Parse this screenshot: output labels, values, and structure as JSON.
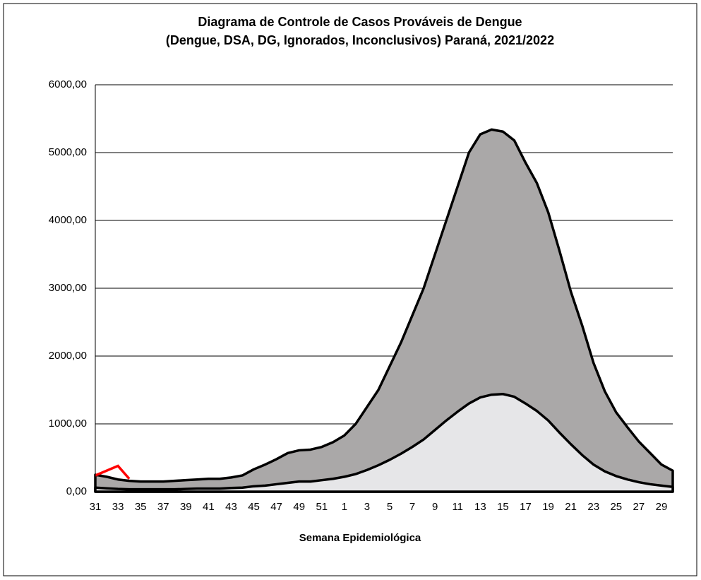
{
  "chart_data": {
    "type": "area",
    "title": [
      "Diagrama de Controle de Casos Prováveis de Dengue",
      "(Dengue, DSA, DG, Ignorados, Inconclusivos) Paraná, 2021/2022"
    ],
    "x_label": "Semana Epidemiológica",
    "categories": [
      "31",
      null,
      "33",
      null,
      "35",
      null,
      "37",
      null,
      "39",
      null,
      "41",
      null,
      "43",
      null,
      "45",
      null,
      "47",
      null,
      "49",
      null,
      "51",
      null,
      "1",
      null,
      "3",
      null,
      "5",
      null,
      "7",
      null,
      "9",
      null,
      "11",
      null,
      "13",
      null,
      "15",
      null,
      "17",
      null,
      "19",
      null,
      "21",
      null,
      "23",
      null,
      "25",
      null,
      "27",
      null,
      "29",
      null
    ],
    "series": [
      {
        "color": "#aaa8a8",
        "values": [
          250,
          220,
          180,
          160,
          150,
          150,
          150,
          160,
          170,
          180,
          190,
          190,
          210,
          240,
          330,
          400,
          480,
          570,
          610,
          620,
          660,
          730,
          830,
          1000,
          1250,
          1500,
          1850,
          2200,
          2600,
          3000,
          3500,
          4000,
          4500,
          5000,
          5270,
          5340,
          5310,
          5180,
          4850,
          4550,
          4120,
          3550,
          2950,
          2450,
          1900,
          1480,
          1170,
          950,
          740,
          570,
          400,
          310
        ]
      },
      {
        "color": "#e6e6e8",
        "values": [
          60,
          50,
          40,
          35,
          35,
          35,
          35,
          35,
          40,
          45,
          45,
          45,
          55,
          60,
          80,
          90,
          110,
          130,
          150,
          150,
          170,
          190,
          220,
          260,
          320,
          390,
          470,
          560,
          660,
          770,
          910,
          1050,
          1180,
          1300,
          1390,
          1430,
          1440,
          1400,
          1300,
          1190,
          1050,
          870,
          700,
          540,
          400,
          300,
          230,
          180,
          140,
          110,
          90,
          70
        ]
      },
      {
        "color": "#ff0000",
        "line": true,
        "values": [
          240,
          310,
          380,
          190,
          null,
          null,
          null,
          null,
          null,
          null,
          null,
          null,
          null,
          null,
          null,
          null,
          null,
          null,
          null,
          null,
          null,
          null,
          null,
          null,
          null,
          null,
          null,
          null,
          null,
          null,
          null,
          null,
          null,
          null,
          null,
          null,
          null,
          null,
          null,
          null,
          null,
          null,
          null,
          null,
          null,
          null,
          null,
          null,
          null,
          null,
          null,
          null
        ]
      }
    ],
    "ylim": [
      0,
      6000
    ],
    "yticks": [
      {
        "value": 0,
        "label": "0,00"
      },
      {
        "value": 1000,
        "label": "1000,00"
      },
      {
        "value": 2000,
        "label": "2000,00"
      },
      {
        "value": 3000,
        "label": "3000,00"
      },
      {
        "value": 4000,
        "label": "4000,00"
      },
      {
        "value": 5000,
        "label": "5000,00"
      },
      {
        "value": 6000,
        "label": "6000,00"
      }
    ],
    "grid": true
  }
}
